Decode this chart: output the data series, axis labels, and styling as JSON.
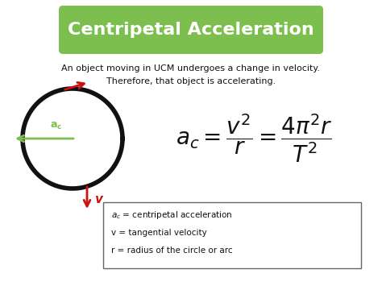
{
  "title": "Centripetal Acceleration",
  "title_bg_color": "#7dbf4e",
  "title_text_color": "#ffffff",
  "body_bg_color": "#ffffff",
  "text_color": "#111111",
  "line1": "An object moving in UCM undergoes a change in velocity.",
  "line2": "Therefore, that object is accelerating.",
  "legend_line1": "$a_c$ = centripetal acceleration",
  "legend_line2": "v = tangential velocity",
  "legend_line3": "r = radius of the circle or arc",
  "circle_color": "#111111",
  "red_arrow_color": "#cc1111",
  "green_arrow_color": "#7dbf4e",
  "ac_label_color": "#7dbf4e"
}
